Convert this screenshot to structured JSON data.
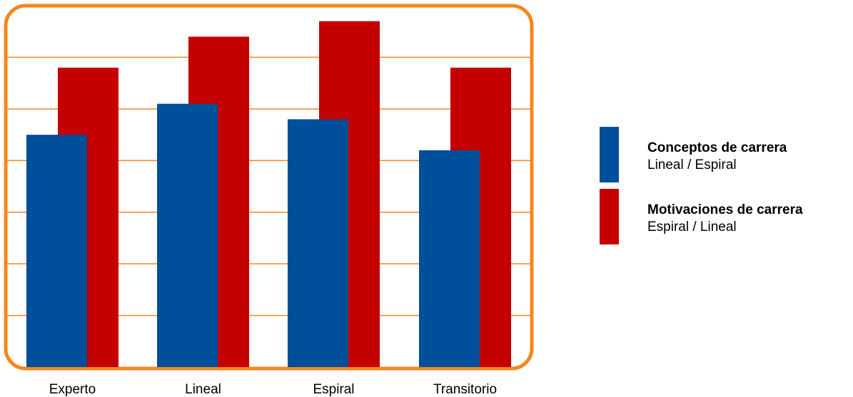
{
  "colors": {
    "frame": "#f7861f",
    "grid": "#f7861f",
    "series1": "#004f9a",
    "series2": "#c40000"
  },
  "chart_data": {
    "type": "bar",
    "categories": [
      "Experto",
      "Lineal",
      "Espiral",
      "Transitorio"
    ],
    "series": [
      {
        "name": "Conceptos de carrera Lineal / Espiral",
        "values": [
          4.5,
          5.1,
          4.8,
          4.2
        ]
      },
      {
        "name": "Motivaciones de carrera Espiral / Lineal",
        "values": [
          5.8,
          6.4,
          6.7,
          5.8
        ]
      }
    ],
    "ylim": [
      0,
      7
    ],
    "grid": true,
    "legend_position": "right"
  },
  "legend": [
    {
      "title": "Conceptos de carrera",
      "subtitle": "Lineal / Espiral",
      "color": "#004f9a"
    },
    {
      "title": "Motivaciones de carrera",
      "subtitle": "Espiral / Lineal",
      "color": "#c40000"
    }
  ]
}
